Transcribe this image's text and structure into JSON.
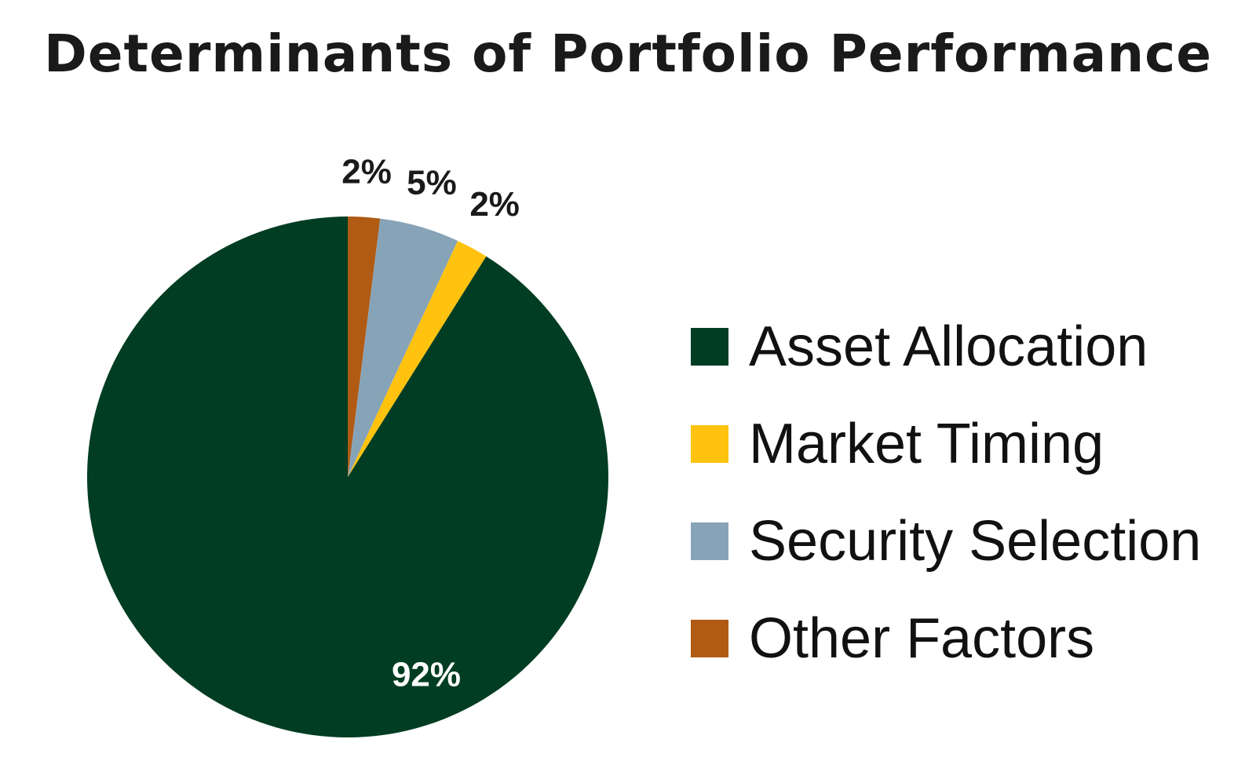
{
  "chart_data": {
    "type": "pie",
    "title": "Determinants of Portfolio Performance",
    "slices": [
      {
        "name": "Asset Allocation",
        "value": 92,
        "label": "92%",
        "color": "#003d22"
      },
      {
        "name": "Market Timing",
        "value": 2,
        "label": "2%",
        "color": "#ffc20e"
      },
      {
        "name": "Security Selection",
        "value": 5,
        "label": "5%",
        "color": "#87a3b8"
      },
      {
        "name": "Other Factors",
        "value": 2,
        "label": "2%",
        "color": "#b05a13"
      }
    ],
    "legend_position": "right"
  }
}
